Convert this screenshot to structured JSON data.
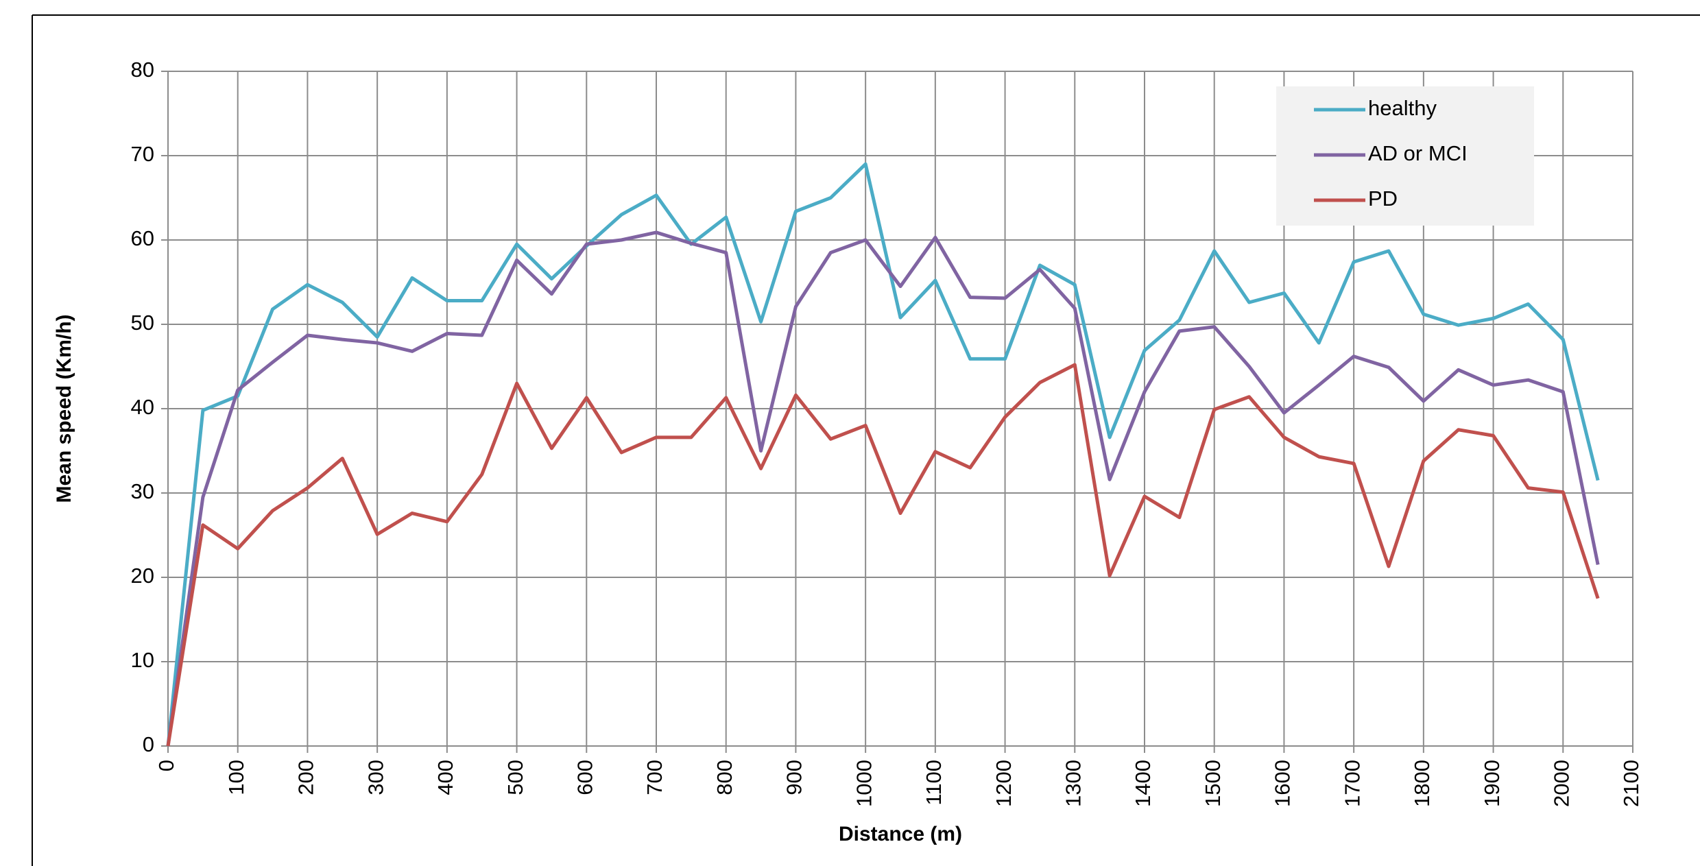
{
  "chart_data": {
    "type": "line",
    "x_label": "Distance (m)",
    "y_label": "Mean speed  (Km/h)",
    "x": [
      0,
      50,
      100,
      150,
      200,
      250,
      300,
      350,
      400,
      450,
      500,
      550,
      600,
      650,
      700,
      750,
      800,
      850,
      900,
      950,
      1000,
      1050,
      1100,
      1150,
      1200,
      1250,
      1300,
      1350,
      1400,
      1450,
      1500,
      1550,
      1600,
      1650,
      1700,
      1750,
      1800,
      1850,
      1900,
      1950,
      2000,
      2050
    ],
    "series": [
      {
        "name": "healthy",
        "color": "#4bacc6",
        "values": [
          0,
          39.8,
          41.5,
          51.8,
          54.7,
          52.6,
          48.5,
          55.5,
          52.8,
          52.8,
          59.5,
          55.4,
          59.3,
          63.0,
          65.3,
          59.5,
          62.7,
          50.3,
          63.4,
          65.0,
          69.0,
          50.8,
          55.2,
          45.9,
          45.9,
          57.0,
          54.7,
          36.6,
          46.9,
          50.5,
          58.7,
          52.6,
          53.7,
          47.8,
          57.4,
          58.7,
          51.2,
          49.9,
          50.7,
          52.4,
          48.2,
          31.5
        ]
      },
      {
        "name": "AD or MCI",
        "color": "#8064a2",
        "values": [
          0,
          29.5,
          42.2,
          45.5,
          48.7,
          48.2,
          47.8,
          46.8,
          48.9,
          48.7,
          57.6,
          53.6,
          59.5,
          60.0,
          60.9,
          59.6,
          58.5,
          35.0,
          52.1,
          58.5,
          60.0,
          54.5,
          60.3,
          53.2,
          53.1,
          56.5,
          51.9,
          31.6,
          42.0,
          49.2,
          49.7,
          45.0,
          39.5,
          42.8,
          46.2,
          44.9,
          40.9,
          44.6,
          42.8,
          43.4,
          42.0,
          21.5
        ]
      },
      {
        "name": "PD",
        "color": "#c0504d",
        "values": [
          0,
          26.2,
          23.4,
          27.9,
          30.6,
          34.1,
          25.1,
          27.6,
          26.6,
          32.2,
          43.0,
          35.3,
          41.3,
          34.8,
          36.6,
          36.6,
          41.3,
          32.9,
          41.6,
          36.4,
          38.0,
          27.6,
          34.9,
          33.0,
          39.0,
          43.1,
          45.2,
          20.2,
          29.6,
          27.1,
          39.9,
          41.4,
          36.6,
          34.3,
          33.5,
          21.3,
          33.8,
          37.5,
          36.8,
          30.6,
          30.1,
          17.5
        ]
      }
    ],
    "xlim": [
      0,
      2100
    ],
    "xticks": [
      0,
      100,
      200,
      300,
      400,
      500,
      600,
      700,
      800,
      900,
      1000,
      1100,
      1200,
      1300,
      1400,
      1500,
      1600,
      1700,
      1800,
      1900,
      2000,
      2100
    ],
    "ylim": [
      0,
      80
    ],
    "yticks": [
      0,
      10,
      20,
      30,
      40,
      50,
      60,
      70,
      80
    ],
    "grid": true,
    "legend": "upper right"
  }
}
